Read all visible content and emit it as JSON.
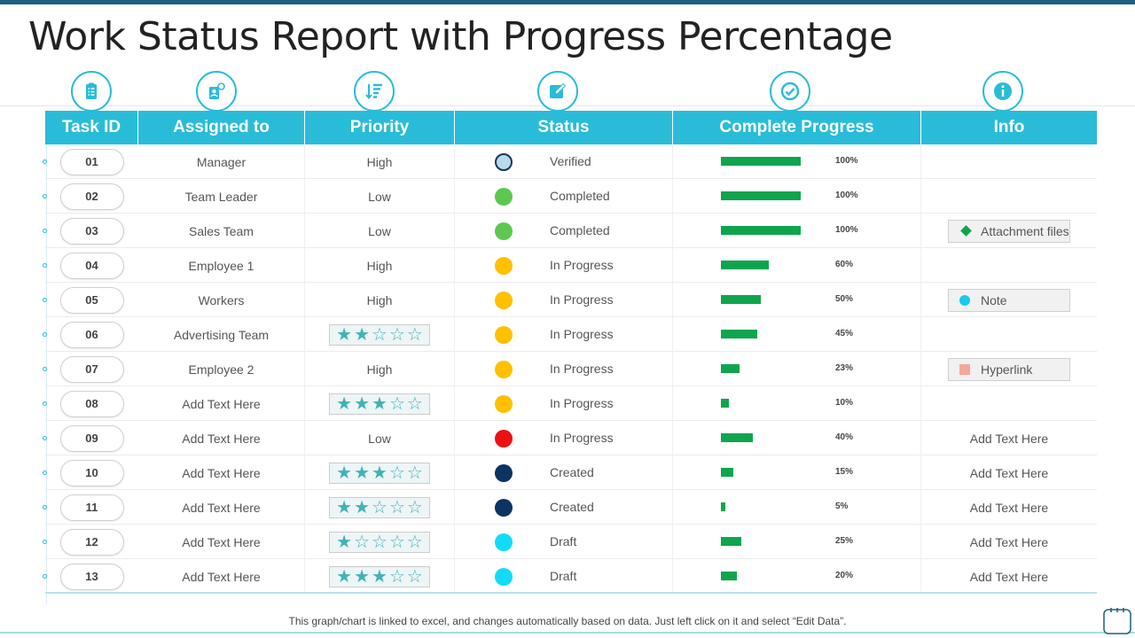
{
  "title": "Work Status Report with Progress Percentage",
  "headers": [
    "Task ID",
    "Assigned to",
    "Priority",
    "Status",
    "Complete Progress",
    "Info"
  ],
  "header_icons": [
    "clipboard-checklist-icon",
    "person-document-icon",
    "sort-priority-icon",
    "edit-pencil-icon",
    "check-circle-icon",
    "info-icon"
  ],
  "colors": {
    "accent": "#29bcd8",
    "bar": "#0fa54e",
    "star": "#3fb3b8"
  },
  "rows": [
    {
      "id": "01",
      "assigned": "Manager",
      "priority": "High",
      "priority_stars": null,
      "status": "Verified",
      "status_color": "#b9d9ec",
      "status_ring": "#17375e",
      "progress": 1.0,
      "progress_label": "100%",
      "info": {
        "type": "none",
        "text": ""
      }
    },
    {
      "id": "02",
      "assigned": "Team Leader",
      "priority": "Low",
      "priority_stars": null,
      "status": "Completed",
      "status_color": "#5cc84f",
      "status_ring": null,
      "progress": 1.0,
      "progress_label": "100%",
      "info": {
        "type": "none",
        "text": ""
      }
    },
    {
      "id": "03",
      "assigned": "Sales Team",
      "priority": "Low",
      "priority_stars": null,
      "status": "Completed",
      "status_color": "#5cc84f",
      "status_ring": null,
      "progress": 1.0,
      "progress_label": "100%",
      "info": {
        "type": "attachment",
        "text": "Attachment files"
      }
    },
    {
      "id": "04",
      "assigned": "Employee 1",
      "priority": "High",
      "priority_stars": null,
      "status": "In Progress",
      "status_color": "#ffc000",
      "status_ring": null,
      "progress": 0.6,
      "progress_label": "60%",
      "info": {
        "type": "none",
        "text": ""
      }
    },
    {
      "id": "05",
      "assigned": "Workers",
      "priority": "High",
      "priority_stars": null,
      "status": "In Progress",
      "status_color": "#ffc000",
      "status_ring": null,
      "progress": 0.5,
      "progress_label": "50%",
      "info": {
        "type": "note",
        "text": "Note"
      }
    },
    {
      "id": "06",
      "assigned": "Advertising Team",
      "priority": "",
      "priority_stars": 2,
      "status": "In Progress",
      "status_color": "#ffc000",
      "status_ring": null,
      "progress": 0.45,
      "progress_label": "45%",
      "info": {
        "type": "none",
        "text": ""
      }
    },
    {
      "id": "07",
      "assigned": "Employee 2",
      "priority": "High",
      "priority_stars": null,
      "status": "In Progress",
      "status_color": "#ffc000",
      "status_ring": null,
      "progress": 0.23,
      "progress_label": "23%",
      "info": {
        "type": "hyperlink",
        "text": "Hyperlink"
      }
    },
    {
      "id": "08",
      "assigned": "Add Text Here",
      "priority": "",
      "priority_stars": 3,
      "status": "In Progress",
      "status_color": "#ffc000",
      "status_ring": null,
      "progress": 0.1,
      "progress_label": "10%",
      "info": {
        "type": "none",
        "text": ""
      }
    },
    {
      "id": "09",
      "assigned": "Add Text Here",
      "priority": "Low",
      "priority_stars": null,
      "status": "In Progress",
      "status_color": "#ee1111",
      "status_ring": null,
      "progress": 0.4,
      "progress_label": "40%",
      "info": {
        "type": "text",
        "text": "Add Text Here"
      }
    },
    {
      "id": "10",
      "assigned": "Add Text Here",
      "priority": "",
      "priority_stars": 3,
      "status": "Created",
      "status_color": "#0b3460",
      "status_ring": null,
      "progress": 0.15,
      "progress_label": "15%",
      "info": {
        "type": "text",
        "text": "Add Text Here"
      }
    },
    {
      "id": "11",
      "assigned": "Add Text Here",
      "priority": "",
      "priority_stars": 2,
      "status": "Created",
      "status_color": "#0b3460",
      "status_ring": null,
      "progress": 0.05,
      "progress_label": "5%",
      "info": {
        "type": "text",
        "text": "Add Text Here"
      }
    },
    {
      "id": "12",
      "assigned": "Add Text Here",
      "priority": "",
      "priority_stars": 1,
      "status": "Draft",
      "status_color": "#12dcf5",
      "status_ring": null,
      "progress": 0.25,
      "progress_label": "25%",
      "info": {
        "type": "text",
        "text": "Add Text Here"
      }
    },
    {
      "id": "13",
      "assigned": "Add Text Here",
      "priority": "",
      "priority_stars": 3,
      "status": "Draft",
      "status_color": "#12dcf5",
      "status_ring": null,
      "progress": 0.2,
      "progress_label": "20%",
      "info": {
        "type": "text",
        "text": "Add Text Here"
      }
    }
  ],
  "footer": "This graph/chart is linked to excel, and changes automatically based on data. Just left click on it and select “Edit Data”."
}
